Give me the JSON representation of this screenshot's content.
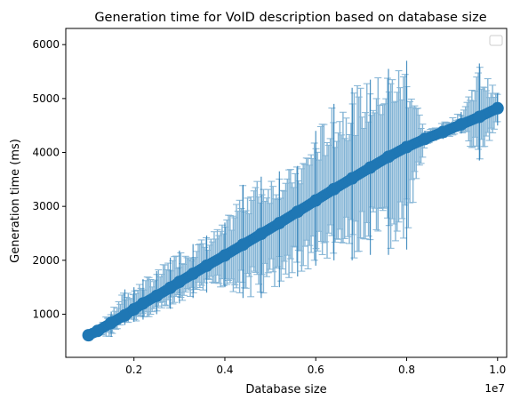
{
  "chart_data": {
    "type": "scatter",
    "title": "Generation time for VoID description based on database size",
    "xlabel": "Database size",
    "ylabel": "Generation time (ms)",
    "x_offset_label": "1e7",
    "x_scale": 10000000,
    "xlim": [
      0.05,
      1.02
    ],
    "ylim": [
      200,
      6300
    ],
    "x_ticks": [
      0.2,
      0.4,
      0.6,
      0.8,
      1.0
    ],
    "x_tick_labels": [
      "0.2",
      "0.4",
      "0.6",
      "0.8",
      "1.0"
    ],
    "y_ticks": [
      1000,
      2000,
      3000,
      4000,
      5000,
      6000
    ],
    "y_tick_labels": [
      "1000",
      "2000",
      "3000",
      "4000",
      "5000",
      "6000"
    ],
    "grid": false,
    "legend": "top-right, empty",
    "color": "#1f77b4",
    "series": [
      {
        "x": [
          0.1,
          0.12,
          0.15,
          0.18,
          0.2,
          0.22,
          0.25,
          0.28,
          0.3,
          0.33,
          0.36,
          0.4,
          0.44,
          0.48,
          0.52,
          0.56,
          0.6,
          0.64,
          0.68,
          0.72,
          0.76,
          0.8,
          0.84,
          0.88,
          0.92,
          0.96,
          1.0
        ],
        "y": [
          610,
          690,
          840,
          980,
          1090,
          1200,
          1340,
          1490,
          1600,
          1750,
          1900,
          2090,
          2290,
          2490,
          2690,
          2900,
          3110,
          3320,
          3520,
          3720,
          3920,
          4100,
          4250,
          4380,
          4520,
          4660,
          4820
        ],
        "err_low": [
          560,
          600,
          580,
          800,
          860,
          900,
          1000,
          1100,
          1200,
          1300,
          1400,
          1500,
          1300,
          1300,
          1500,
          1700,
          1900,
          2000,
          2000,
          2100,
          2100,
          2200,
          4150,
          4250,
          4350,
          3850,
          4500
        ],
        "err_high": [
          680,
          790,
          1050,
          1460,
          1500,
          1650,
          1800,
          2050,
          2180,
          2300,
          2460,
          2700,
          3400,
          3550,
          3650,
          3750,
          4400,
          4900,
          5200,
          5350,
          5550,
          5700,
          4400,
          4550,
          4750,
          5650,
          5100
        ]
      }
    ]
  }
}
